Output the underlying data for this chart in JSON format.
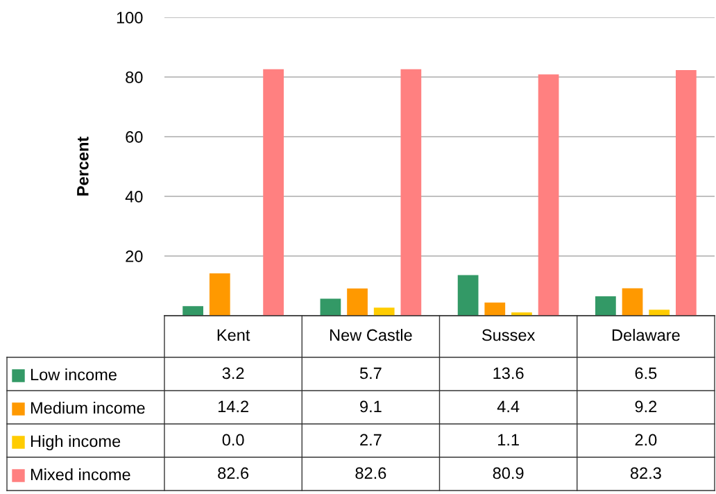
{
  "chart_data": {
    "type": "bar",
    "ylabel": "Percent",
    "categories": [
      "Kent",
      "New Castle",
      "Sussex",
      "Delaware"
    ],
    "series": [
      {
        "name": "Low income",
        "color": "#339966",
        "values": [
          3.2,
          5.7,
          13.6,
          6.5
        ],
        "value_labels": [
          "3.2",
          "5.7",
          "13.6",
          "6.5"
        ]
      },
      {
        "name": "Medium income",
        "color": "#ff9900",
        "values": [
          14.2,
          9.1,
          4.4,
          9.2
        ],
        "value_labels": [
          "14.2",
          "9.1",
          "4.4",
          "9.2"
        ]
      },
      {
        "name": "High income",
        "color": "#ffcc00",
        "values": [
          0.0,
          2.7,
          1.1,
          2.0
        ],
        "value_labels": [
          "0.0",
          "2.7",
          "1.1",
          "2.0"
        ]
      },
      {
        "name": "Mixed income",
        "color": "#ff8080",
        "values": [
          82.6,
          82.6,
          80.9,
          82.3
        ],
        "value_labels": [
          "82.6",
          "82.6",
          "80.9",
          "82.3"
        ]
      }
    ],
    "ylim": [
      0,
      100
    ],
    "yticks": [
      20,
      40,
      60,
      80,
      100
    ],
    "grid": "y",
    "legend": "bottom"
  }
}
